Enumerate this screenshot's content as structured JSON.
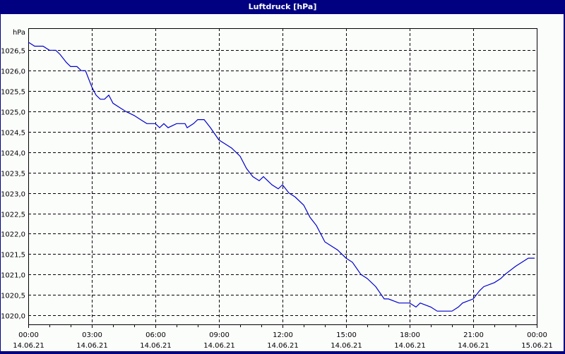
{
  "window": {
    "title": "Luftdruck [hPa]",
    "title_bar_color": "#000080",
    "background": "#fbfdfb"
  },
  "chart_data": {
    "type": "line",
    "title": "Luftdruck [hPa]",
    "xlabel": "",
    "ylabel": "hPa",
    "ylim": [
      1019.8,
      1026.85
    ],
    "xlim_hours": [
      0,
      24
    ],
    "grid": true,
    "grid_style": "dashed",
    "legend": null,
    "line_color": "#0000cc",
    "y_ticks": [
      "1020,0",
      "1020,5",
      "1021,0",
      "1021,5",
      "1022,0",
      "1022,5",
      "1023,0",
      "1023,5",
      "1024,0",
      "1024,5",
      "1025,0",
      "1025,5",
      "1026,0",
      "1026,5"
    ],
    "y_tick_values": [
      1020.0,
      1020.5,
      1021.0,
      1021.5,
      1022.0,
      1022.5,
      1023.0,
      1023.5,
      1024.0,
      1024.5,
      1025.0,
      1025.5,
      1026.0,
      1026.5
    ],
    "x_ticks": [
      {
        "time": "00:00",
        "date": "14.06.21",
        "hour": 0
      },
      {
        "time": "03:00",
        "date": "14.06.21",
        "hour": 3
      },
      {
        "time": "06:00",
        "date": "14.06.21",
        "hour": 6
      },
      {
        "time": "09:00",
        "date": "14.06.21",
        "hour": 9
      },
      {
        "time": "12:00",
        "date": "14.06.21",
        "hour": 12
      },
      {
        "time": "15:00",
        "date": "14.06.21",
        "hour": 15
      },
      {
        "time": "18:00",
        "date": "14.06.21",
        "hour": 18
      },
      {
        "time": "21:00",
        "date": "14.06.21",
        "hour": 21
      },
      {
        "time": "00:00",
        "date": "15.06.21",
        "hour": 24
      }
    ],
    "series": [
      {
        "name": "Luftdruck",
        "unit": "hPa",
        "x_hours": [
          0,
          0.3,
          0.7,
          1.0,
          1.3,
          1.5,
          1.8,
          2.0,
          2.3,
          2.5,
          2.7,
          3.0,
          3.2,
          3.4,
          3.6,
          3.8,
          4.0,
          4.3,
          4.6,
          5.0,
          5.3,
          5.6,
          6.0,
          6.2,
          6.4,
          6.6,
          7.0,
          7.4,
          7.5,
          7.8,
          8.0,
          8.3,
          8.6,
          9.0,
          9.3,
          9.6,
          10.0,
          10.3,
          10.6,
          10.9,
          11.1,
          11.5,
          11.8,
          12.0,
          12.3,
          12.6,
          13.0,
          13.3,
          13.6,
          14.0,
          14.3,
          14.6,
          15.0,
          15.3,
          15.7,
          16.0,
          16.4,
          16.8,
          17.0,
          17.5,
          18.0,
          18.3,
          18.5,
          19.0,
          19.3,
          20.0,
          20.3,
          20.5,
          21.0,
          21.3,
          21.5,
          22.0,
          22.3,
          22.5,
          23.0,
          23.3,
          23.6,
          23.9
        ],
        "values": [
          1026.7,
          1026.6,
          1026.6,
          1026.5,
          1026.5,
          1026.4,
          1026.2,
          1026.1,
          1026.1,
          1026.0,
          1026.0,
          1025.6,
          1025.4,
          1025.3,
          1025.3,
          1025.4,
          1025.2,
          1025.1,
          1025.0,
          1024.9,
          1024.8,
          1024.7,
          1024.7,
          1024.6,
          1024.7,
          1024.6,
          1024.7,
          1024.7,
          1024.6,
          1024.7,
          1024.8,
          1024.8,
          1024.6,
          1024.3,
          1024.2,
          1024.1,
          1023.9,
          1023.6,
          1023.4,
          1023.3,
          1023.4,
          1023.2,
          1023.1,
          1023.2,
          1023.0,
          1022.9,
          1022.7,
          1022.4,
          1022.2,
          1021.8,
          1021.7,
          1021.6,
          1021.4,
          1021.3,
          1021.0,
          1020.9,
          1020.7,
          1020.4,
          1020.4,
          1020.3,
          1020.3,
          1020.2,
          1020.3,
          1020.2,
          1020.1,
          1020.1,
          1020.2,
          1020.3,
          1020.4,
          1020.6,
          1020.7,
          1020.8,
          1020.9,
          1021.0,
          1021.2,
          1021.3,
          1021.4,
          1021.4
        ]
      }
    ]
  }
}
